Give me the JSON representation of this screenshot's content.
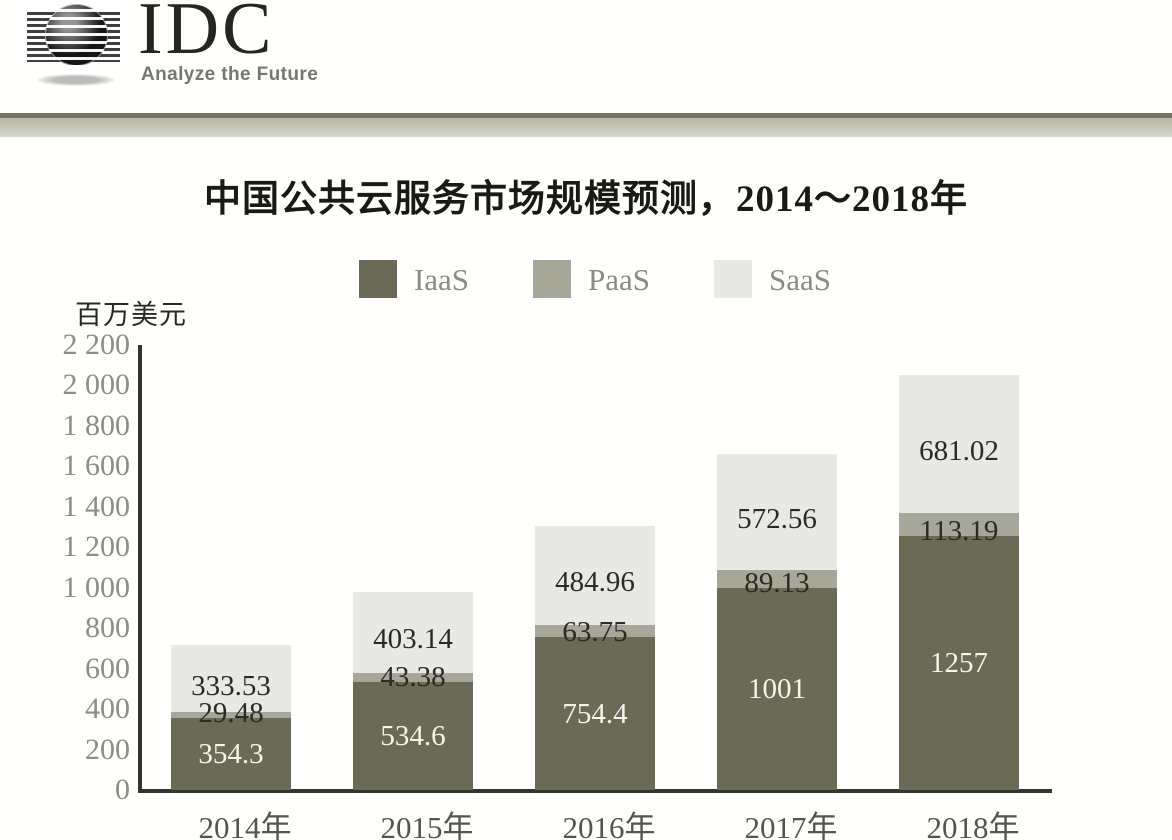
{
  "header": {
    "logo_text": "IDC",
    "logo_tagline": "Analyze the Future"
  },
  "chart": {
    "title": "中国公共云服务市场规模预测，2014～2018年",
    "unit_label": "百万美元"
  },
  "chart_data": {
    "type": "bar",
    "stacked": true,
    "title": "中国公共云服务市场规模预测，2014～2018年",
    "ylabel": "百万美元",
    "xlabel": "",
    "categories": [
      "2014年",
      "2015年",
      "2016年",
      "2017年",
      "2018年"
    ],
    "series": [
      {
        "name": "IaaS",
        "color": "#6b6a56",
        "label_color": "#f6f4eb",
        "values": [
          354.3,
          534.6,
          754.4,
          1001,
          1257
        ],
        "labels": [
          "354.3",
          "534.6",
          "754.4",
          "1001",
          "1257"
        ]
      },
      {
        "name": "PaaS",
        "color": "#a6a798",
        "label_color": "#2c2b23",
        "values": [
          29.48,
          43.38,
          63.75,
          89.13,
          113.19
        ],
        "labels": [
          "29.48",
          "43.38",
          "63.75",
          "89.13",
          "113.19"
        ]
      },
      {
        "name": "SaaS",
        "color": "#e8e8e4",
        "label_color": "#2c2b23",
        "values": [
          333.53,
          403.14,
          484.96,
          572.56,
          681.02
        ],
        "labels": [
          "333.53",
          "403.14",
          "484.96",
          "572.56",
          "681.02"
        ]
      }
    ],
    "ylim": [
      0,
      2200
    ],
    "ytick_step": 200,
    "ytick_labels": [
      "0",
      "200",
      "400",
      "600",
      "800",
      "1 000",
      "1 200",
      "1 400",
      "1 600",
      "1 800",
      "2 000",
      "2 200"
    ],
    "legend_position": "top",
    "grid": false
  }
}
